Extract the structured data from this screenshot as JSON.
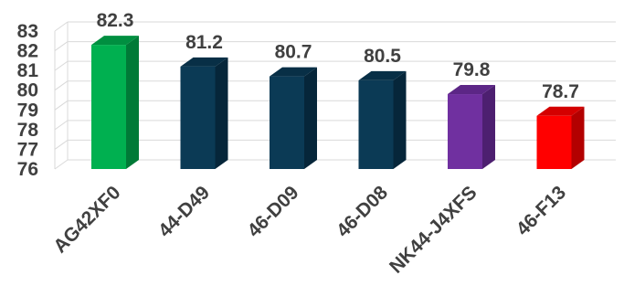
{
  "chart_data": {
    "type": "bar",
    "title": "",
    "xlabel": "",
    "ylabel": "",
    "ylim": [
      76,
      83
    ],
    "y_ticks": [
      76,
      77,
      78,
      79,
      80,
      81,
      82,
      83
    ],
    "grid": true,
    "style": "3d-column",
    "categories": [
      "AG42XF0",
      "44-D49",
      "46-D09",
      "46-D08",
      "NK44-J4XFS",
      "46-F13"
    ],
    "values": [
      82.3,
      81.2,
      80.7,
      80.5,
      79.8,
      78.7
    ],
    "data_labels": [
      "82.3",
      "81.2",
      "80.7",
      "80.5",
      "79.8",
      "78.7"
    ],
    "bar_colors": [
      {
        "front": "#00b050",
        "side": "#007a37",
        "top": "#008f40"
      },
      {
        "front": "#0b3a55",
        "side": "#06263a",
        "top": "#082f46"
      },
      {
        "front": "#0b3a55",
        "side": "#06263a",
        "top": "#082f46"
      },
      {
        "front": "#0b3a55",
        "side": "#06263a",
        "top": "#082f46"
      },
      {
        "front": "#7030a0",
        "side": "#4d1f70",
        "top": "#5c2686"
      },
      {
        "front": "#ff0000",
        "side": "#b30000",
        "top": "#d40000"
      }
    ]
  }
}
